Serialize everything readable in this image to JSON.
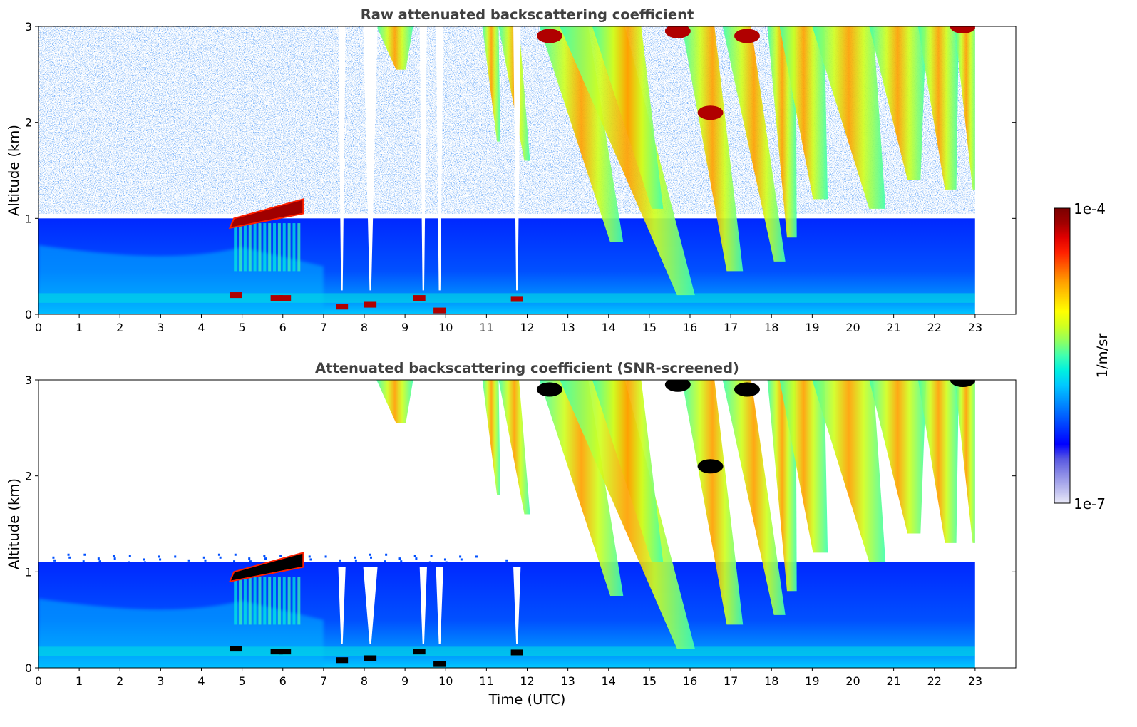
{
  "chart_data": [
    {
      "type": "heatmap",
      "title": "Raw attenuated backscattering coefficient",
      "xlabel": "",
      "ylabel": "Altitude (km)",
      "xlim": [
        0,
        24
      ],
      "ylim": [
        0,
        3
      ],
      "x_ticks": [
        0,
        1,
        2,
        3,
        4,
        5,
        6,
        7,
        8,
        9,
        10,
        11,
        12,
        13,
        14,
        15,
        16,
        17,
        18,
        19,
        20,
        21,
        22,
        23
      ],
      "y_ticks": [
        0,
        1,
        2,
        3
      ],
      "data_end_time": 23,
      "screening": "none",
      "features": [
        {
          "kind": "boundary_layer",
          "t0": 0,
          "t1": 23,
          "top_km": 1.0,
          "note": "weak backscatter below ~1 km all day"
        },
        {
          "kind": "cloud_layer",
          "t0": 4.7,
          "t1": 6.5,
          "base_km": 0.9,
          "top_km": 1.2,
          "level": "saturated"
        },
        {
          "kind": "precip_streaks",
          "t0": 12.3,
          "t1": 23,
          "from_km": 3.0,
          "to_km": 0.2,
          "level": "moderate-high"
        },
        {
          "kind": "signal_gaps",
          "times": [
            7.45,
            8.15,
            9.45,
            9.85,
            11.75
          ]
        }
      ]
    },
    {
      "type": "heatmap",
      "title": "Attenuated backscattering coefficient (SNR-screened)",
      "xlabel": "Time (UTC)",
      "ylabel": "Altitude (km)",
      "xlim": [
        0,
        24
      ],
      "ylim": [
        0,
        3
      ],
      "x_ticks": [
        0,
        1,
        2,
        3,
        4,
        5,
        6,
        7,
        8,
        9,
        10,
        11,
        12,
        13,
        14,
        15,
        16,
        17,
        18,
        19,
        20,
        21,
        22,
        23
      ],
      "y_ticks": [
        0,
        1,
        2,
        3
      ],
      "data_end_time": 23,
      "screening": "SNR",
      "features": [
        {
          "kind": "boundary_layer",
          "t0": 0,
          "t1": 23,
          "top_km": 1.1,
          "note": "noise above removed"
        },
        {
          "kind": "cloud_layer",
          "t0": 4.7,
          "t1": 6.5,
          "base_km": 0.9,
          "top_km": 1.2,
          "level": "saturated"
        },
        {
          "kind": "precip_streaks",
          "t0": 12.3,
          "t1": 23,
          "from_km": 3.0,
          "to_km": 0.2,
          "level": "moderate-high"
        },
        {
          "kind": "signal_gaps",
          "times": [
            7.45,
            8.15,
            9.45,
            9.85,
            11.75
          ]
        }
      ]
    }
  ],
  "colorbar": {
    "label": "1/m/sr",
    "min_label": "1e-7",
    "max_label": "1e-4",
    "min": 1e-07,
    "max": 0.0001,
    "scale": "log",
    "colors": [
      "#e9e9f8",
      "#b8b8ee",
      "#8a8ae6",
      "#5858e2",
      "#0000ff",
      "#0032ff",
      "#0064ff",
      "#0096ff",
      "#00c8ff",
      "#00f0e0",
      "#40ffb0",
      "#90ff60",
      "#d0ff20",
      "#ffff00",
      "#ffd000",
      "#ffa000",
      "#ff6000",
      "#ff2000",
      "#e00000",
      "#a00000",
      "#7a0000"
    ]
  }
}
